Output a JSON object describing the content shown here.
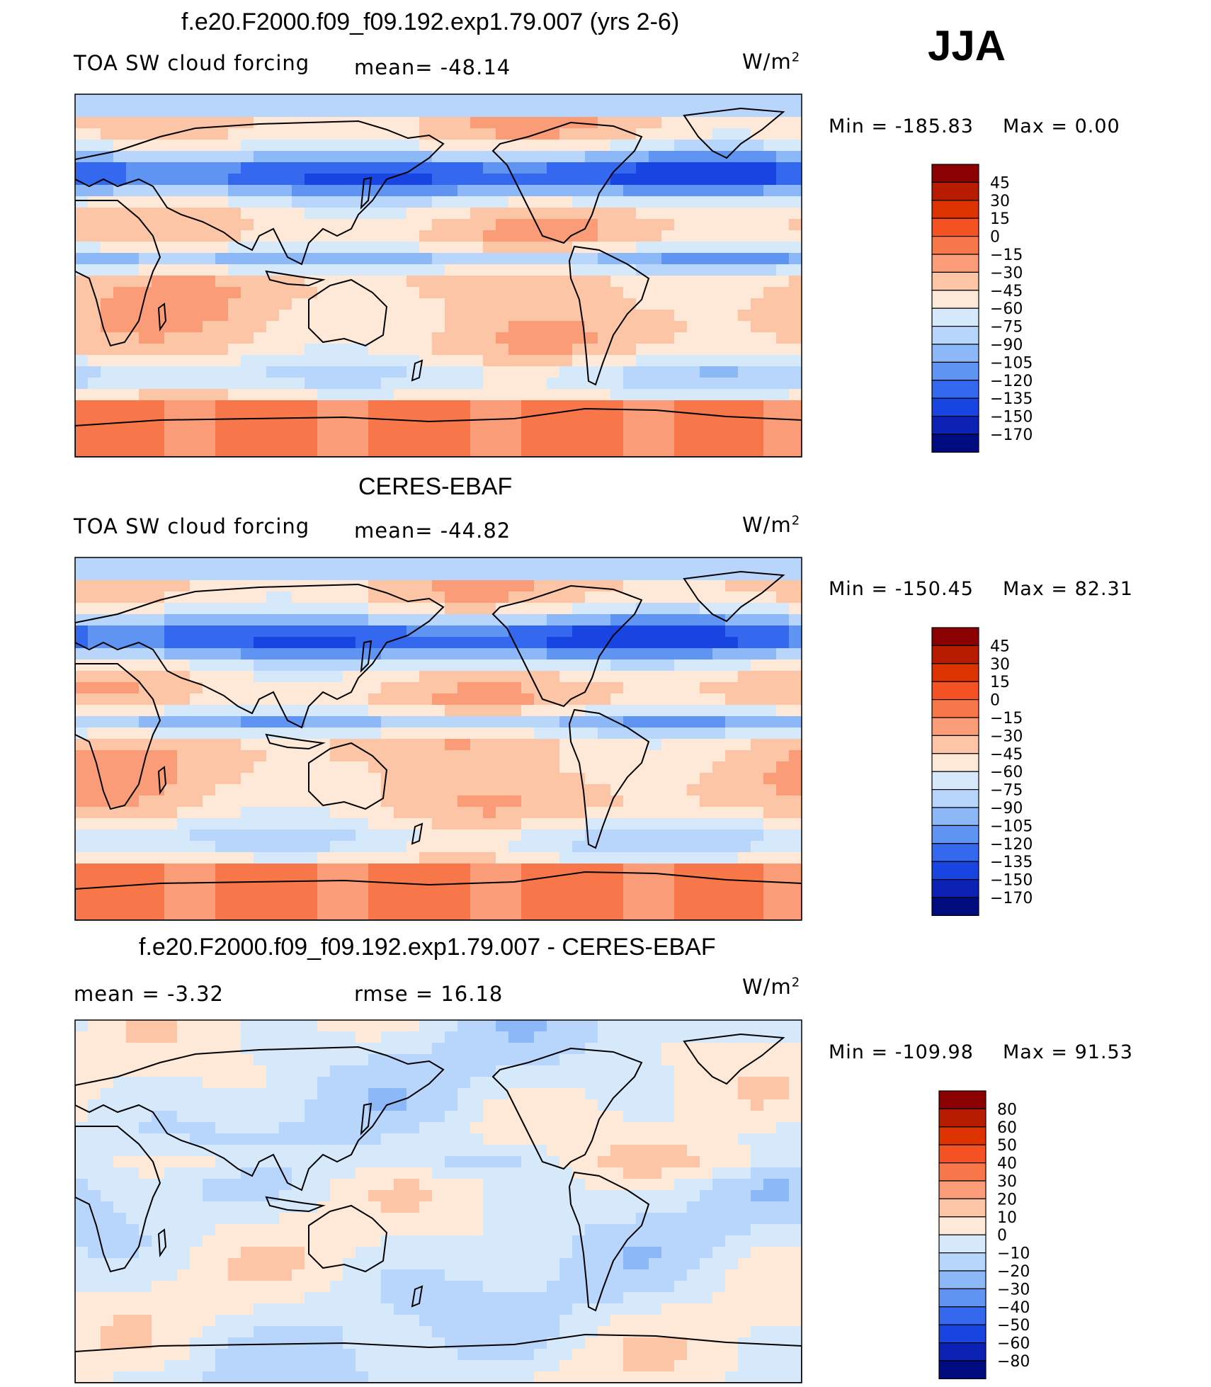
{
  "season": "JJA",
  "chart_data": [
    {
      "type": "heatmap",
      "title": "f.e20.F2000.f09_f09.192.exp1.79.007 (yrs 2-6)",
      "variable": "TOA SW cloud forcing",
      "mean_label": "mean= -48.14",
      "units": "W/m",
      "units_sup": "2",
      "minmax": {
        "min_label": "Min = -185.83",
        "max_label": "Max =    0.00"
      },
      "colorbar": {
        "levels": [
          "45",
          "30",
          "15",
          "0",
          "-15",
          "-30",
          "-45",
          "-60",
          "-75",
          "-90",
          "-105",
          "-120",
          "-135",
          "-150",
          "-170"
        ],
        "colors": [
          "#8b0000",
          "#b81c00",
          "#dc3300",
          "#f55224",
          "#f7774a",
          "#fa9c77",
          "#fcc5a6",
          "#fee9d8",
          "#d5e9fb",
          "#b8d6fb",
          "#8db8f8",
          "#5f94f3",
          "#3468ee",
          "#1844e2",
          "#0b22b4",
          "#000b80"
        ]
      },
      "mean_value": -48.14,
      "min_value": -185.83,
      "max_value": 0.0
    },
    {
      "type": "heatmap",
      "title": "CERES-EBAF",
      "variable": "TOA SW cloud forcing",
      "mean_label": "mean= -44.82",
      "units": "W/m",
      "units_sup": "2",
      "minmax": {
        "min_label": "Min = -150.45",
        "max_label": "Max =  82.31"
      },
      "colorbar": {
        "levels": [
          "45",
          "30",
          "15",
          "0",
          "-15",
          "-30",
          "-45",
          "-60",
          "-75",
          "-90",
          "-105",
          "-120",
          "-135",
          "-150",
          "-170"
        ],
        "colors": [
          "#8b0000",
          "#b81c00",
          "#dc3300",
          "#f55224",
          "#f7774a",
          "#fa9c77",
          "#fcc5a6",
          "#fee9d8",
          "#d5e9fb",
          "#b8d6fb",
          "#8db8f8",
          "#5f94f3",
          "#3468ee",
          "#1844e2",
          "#0b22b4",
          "#000b80"
        ]
      },
      "mean_value": -44.82,
      "min_value": -150.45,
      "max_value": 82.31
    },
    {
      "type": "heatmap",
      "title": "f.e20.F2000.f09_f09.192.exp1.79.007 - CERES-EBAF",
      "mean_label": "mean =   -3.32",
      "rmse_label": "rmse =   16.18",
      "units": "W/m",
      "units_sup": "2",
      "minmax": {
        "min_label": "Min = -109.98",
        "max_label": "Max =  91.53"
      },
      "colorbar": {
        "levels": [
          "80",
          "60",
          "50",
          "40",
          "30",
          "20",
          "10",
          "0",
          "-10",
          "-20",
          "-30",
          "-40",
          "-50",
          "-60",
          "-80"
        ],
        "colors": [
          "#8b0000",
          "#b81c00",
          "#dc3300",
          "#f55224",
          "#f7774a",
          "#fa9c77",
          "#fcc5a6",
          "#fee9d8",
          "#d5e9fb",
          "#b8d6fb",
          "#8db8f8",
          "#5f94f3",
          "#3468ee",
          "#1844e2",
          "#0b22b4",
          "#000b80"
        ]
      },
      "mean_value": -3.32,
      "rmse_value": 16.18,
      "min_value": -109.98,
      "max_value": 91.53
    }
  ]
}
